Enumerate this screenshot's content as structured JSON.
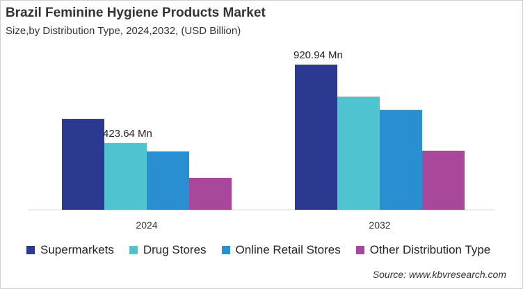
{
  "chart_data": {
    "type": "bar",
    "title": "Brazil Feminine Hygiene Products Market",
    "subtitle": "Size,by Distribution Type, 2024,2032, (USD Billion)",
    "categories": [
      "2024",
      "2032"
    ],
    "series": [
      {
        "name": "Supermarkets",
        "color": "#2b3990",
        "values": [
          577,
          920.94
        ]
      },
      {
        "name": "Drug Stores",
        "color": "#4fc3d0",
        "values": [
          423.64,
          718
        ]
      },
      {
        "name": "Online Retail Stores",
        "color": "#2a8fd0",
        "values": [
          370,
          634
        ]
      },
      {
        "name": "Other Distribution Type",
        "color": "#a9489b",
        "values": [
          203,
          375
        ]
      }
    ],
    "data_labels": [
      {
        "category": "2024",
        "series": "Drug Stores",
        "text": "423.64 Mn"
      },
      {
        "category": "2032",
        "series": "Supermarkets",
        "text": "920.94 Mn"
      }
    ],
    "ylim": [
      0,
      1000
    ],
    "grid": false,
    "legend_placement": "bottom",
    "source": "Source: www.kbvresearch.com"
  }
}
